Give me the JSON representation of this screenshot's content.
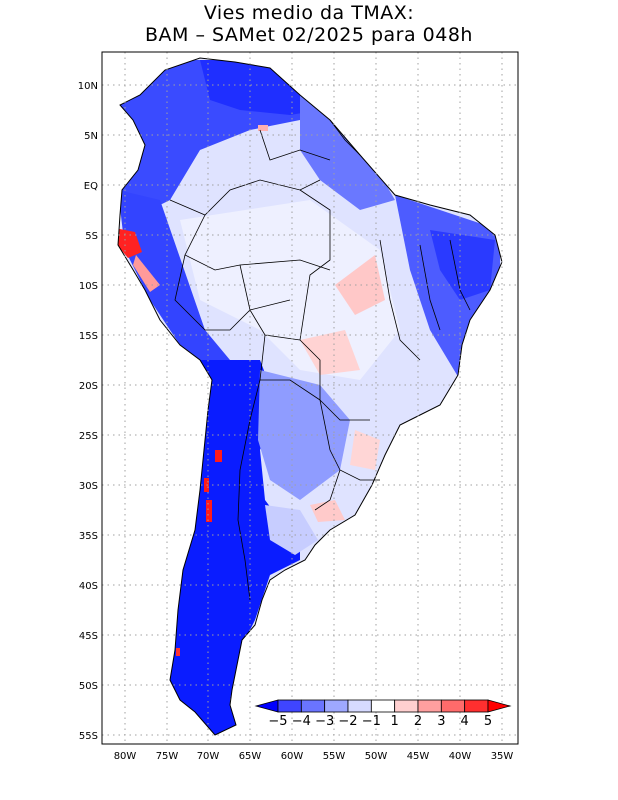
{
  "title": {
    "line1": "Vies medio da TMAX:",
    "line2": "BAM – SAMet 02/2025  para 048h"
  },
  "axes": {
    "lat_labels": [
      "10N",
      "5N",
      "EQ",
      "5S",
      "10S",
      "15S",
      "20S",
      "25S",
      "30S",
      "35S",
      "40S",
      "45S",
      "50S",
      "55S"
    ],
    "lon_labels": [
      "80W",
      "75W",
      "70W",
      "65W",
      "60W",
      "55W",
      "50W",
      "45W",
      "40W",
      "35W"
    ]
  },
  "colorbar": {
    "labels": [
      "−5",
      "−4",
      "−3",
      "−2",
      "−1",
      "1",
      "2",
      "3",
      "4",
      "5"
    ],
    "colors": [
      "#0000ff",
      "#3f45ff",
      "#6a74ff",
      "#9ea8ff",
      "#d6daff",
      "#ffffff",
      "#ffd0d0",
      "#ff9f9f",
      "#ff6b6b",
      "#ff2f2f",
      "#ff0000"
    ]
  },
  "palette": {
    "ocean": "#ffffff",
    "deep_blue": "#1f2fff",
    "mid_blue": "#5d6bff",
    "light_blue": "#b7c0ff",
    "pale": "#e9ecff",
    "pink": "#ffc4c4",
    "red": "#ff2a2a",
    "grid": "#9a9a9a"
  }
}
